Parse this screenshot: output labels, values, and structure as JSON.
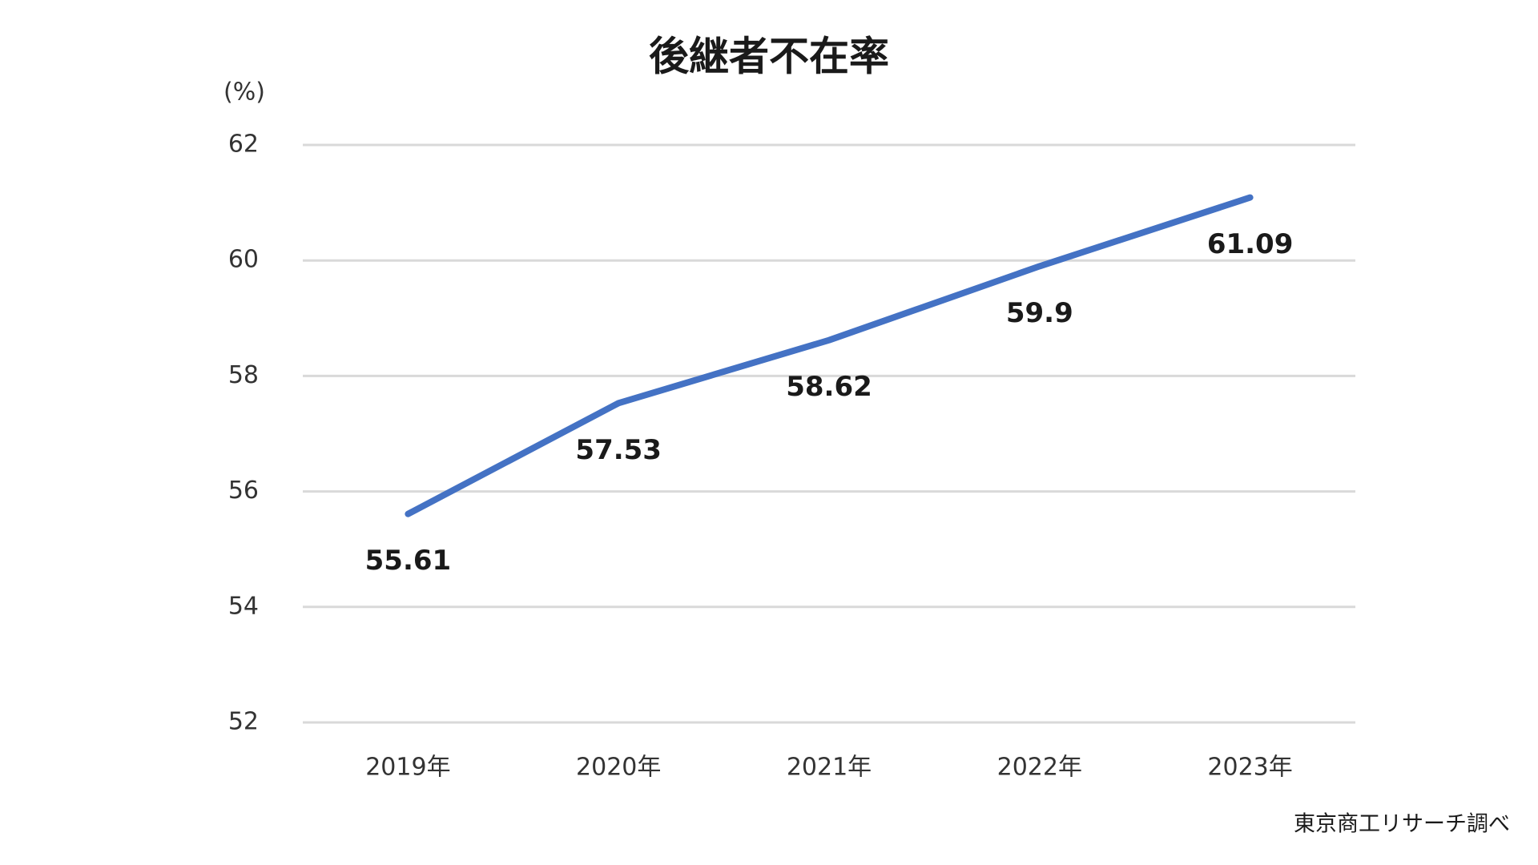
{
  "chart_data": {
    "type": "line",
    "title": "後継者不在率",
    "y_axis_label": "(%)",
    "categories": [
      "2019年",
      "2020年",
      "2021年",
      "2022年",
      "2023年"
    ],
    "series": [
      {
        "name": "後継者不在率",
        "color": "#4472c4",
        "values": [
          55.61,
          57.53,
          58.62,
          59.9,
          61.09
        ]
      }
    ],
    "ylim": [
      52,
      62
    ],
    "yticks": [
      52,
      54,
      56,
      58,
      60,
      62
    ],
    "grid": true,
    "source": "東京商工リサーチ調べ"
  }
}
